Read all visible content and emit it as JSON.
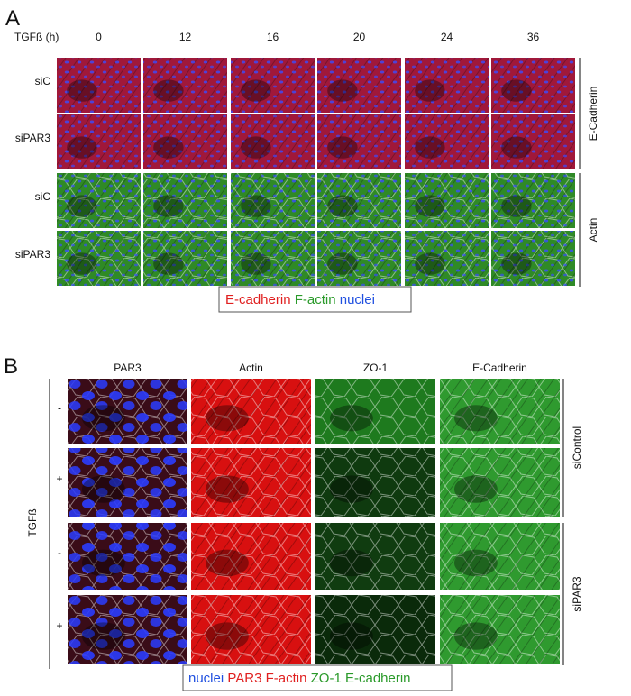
{
  "panel_a": {
    "label": "A",
    "time_header": "TGFß (h)",
    "times": [
      "0",
      "12",
      "16",
      "20",
      "24",
      "36"
    ],
    "rows": [
      "siC",
      "siPAR3",
      "siC",
      "siPAR3"
    ],
    "groups": [
      "E-Cadherin",
      "Actin"
    ],
    "legend": [
      "E-cadherin",
      "F-actin",
      "nuclei"
    ]
  },
  "panel_b": {
    "label": "B",
    "columns": [
      "PAR3",
      "Actin",
      "ZO-1",
      "E-Cadherin"
    ],
    "rows": [
      "-",
      "+",
      "-",
      "+"
    ],
    "side_label": "TGFß",
    "groups": [
      "siControl",
      "siPAR3"
    ],
    "legend": [
      "nuclei",
      "PAR3",
      "F-actin",
      "ZO-1",
      "E-cadherin"
    ]
  }
}
